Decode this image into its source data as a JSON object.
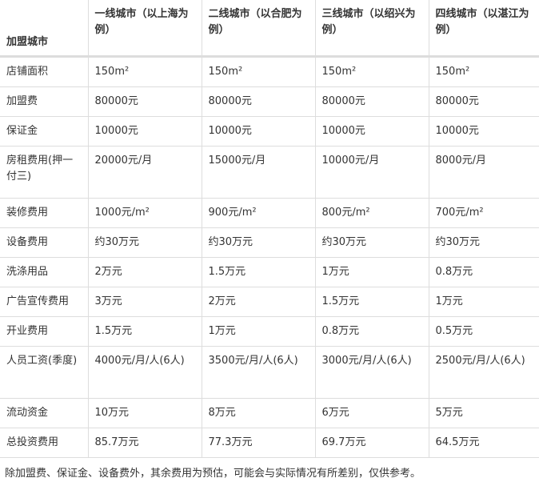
{
  "headers": [
    "加盟城市",
    "一线城市（以上海为例）",
    "二线城市（以合肥为例）",
    "三线城市（以绍兴为例）",
    "四线城市（以湛江为例）"
  ],
  "rows": [
    [
      "店铺面积",
      "150m²",
      "150m²",
      "150m²",
      "150m²"
    ],
    [
      "加盟费",
      "80000元",
      "80000元",
      "80000元",
      "80000元"
    ],
    [
      "保证金",
      "10000元",
      "10000元",
      "10000元",
      "10000元"
    ],
    [
      "房租费用(押一付三)",
      "20000元/月",
      "15000元/月",
      "10000元/月",
      "8000元/月"
    ],
    [
      "装修费用",
      "1000元/m²",
      "900元/m²",
      "800元/m²",
      "700元/m²"
    ],
    [
      "设备费用",
      "约30万元",
      "约30万元",
      "约30万元",
      "约30万元"
    ],
    [
      "洗涤用品",
      "2万元",
      "1.5万元",
      "1万元",
      "0.8万元"
    ],
    [
      "广告宣传费用",
      "3万元",
      "2万元",
      "1.5万元",
      "1万元"
    ],
    [
      "开业费用",
      "1.5万元",
      "1万元",
      "0.8万元",
      "0.5万元"
    ],
    [
      "人员工资(季度)",
      "4000元/月/人(6人)",
      "3500元/月/人(6人)",
      "3000元/月/人(6人)",
      "2500元/月/人(6人)"
    ],
    [
      "流动资金",
      "10万元",
      "8万元",
      "6万元",
      "5万元"
    ],
    [
      "总投资费用",
      "85.7万元",
      "77.3万元",
      "69.7万元",
      "64.5万元"
    ]
  ],
  "note": "除加盟费、保证金、设备费外，其余费用为预估，可能会与实际情况有所差别，仅供参考。"
}
